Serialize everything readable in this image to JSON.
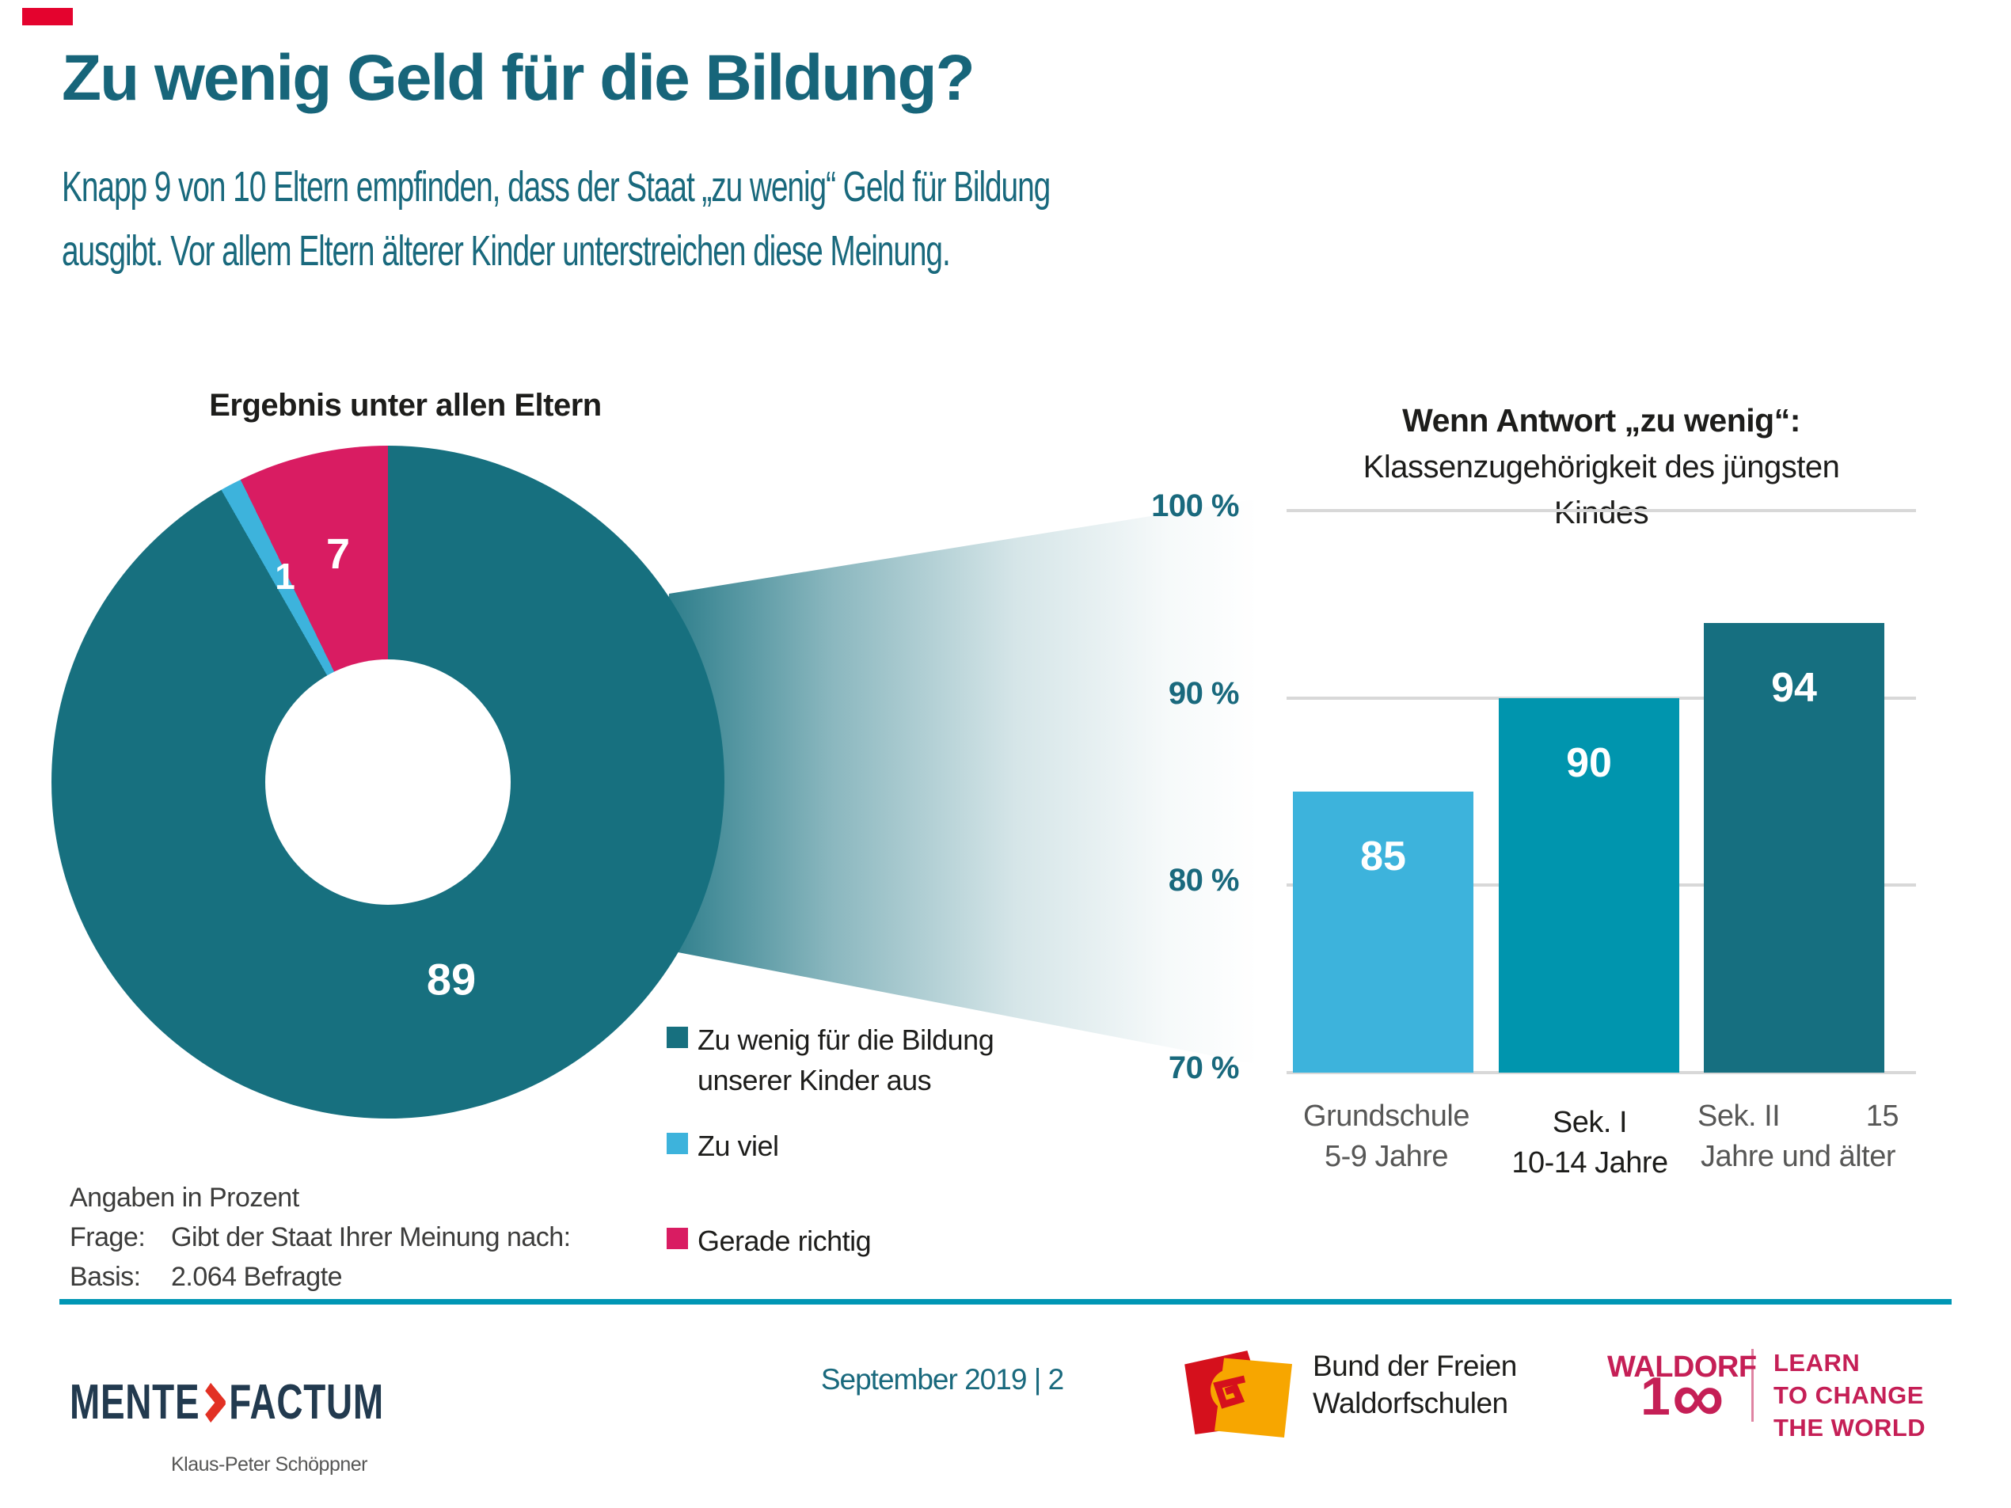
{
  "colors": {
    "title_teal": "#17657a",
    "subtitle_teal": "#19697d",
    "donut_teal": "#17707f",
    "light_blue": "#3db3dc",
    "pink": "#d91c62",
    "bar_mid_teal": "#0095ae",
    "bar_dark_teal": "#166f80",
    "gridline_gray": "#d8d8d8",
    "separator_teal": "#0096b4",
    "mente_navy": "#223a4f",
    "mente_red": "#e23124",
    "waldorf_crimson": "#c51f56",
    "bund_red": "#d5101c",
    "bund_orange": "#f7a600",
    "corner_marker_red": "#e4032e"
  },
  "header": {
    "title": "Zu wenig Geld für die Bildung?",
    "subtitle_line1": "Knapp 9 von 10 Eltern empfinden, dass der Staat „zu wenig“ Geld für Bildung",
    "subtitle_line2": "ausgibt. Vor allem Eltern älterer Kinder unterstreichen diese Meinung."
  },
  "chart_data": [
    {
      "type": "pie",
      "title": "Ergebnis unter allen Eltern",
      "labels": [
        "Zu wenig für die Bildung unserer Kinder aus",
        "Zu viel",
        "Gerade richtig"
      ],
      "values": [
        89,
        1,
        7
      ],
      "colors": [
        "#17707f",
        "#3db3dc",
        "#d91c62"
      ],
      "unit": "percent",
      "donut": true,
      "start_angle_deg": 0,
      "note": "Angaben in Prozent"
    },
    {
      "type": "bar",
      "title": "Wenn Antwort „zu wenig“: Klassenzugehörigkeit des jüngsten Kindes",
      "categories": [
        "Grundschule 5-9 Jahre",
        "Sek. I 10-14 Jahre",
        "Sek. II 15 Jahre und älter"
      ],
      "values": [
        85,
        90,
        94
      ],
      "colors": [
        "#3db3dc",
        "#0095ae",
        "#166f80"
      ],
      "ylim": [
        70,
        100
      ],
      "yticks": [
        "100 %",
        "90 %",
        "80 %",
        "70 %"
      ],
      "grid": true,
      "unit": "percent"
    }
  ],
  "legend": {
    "items": [
      {
        "line1": "Zu wenig für die Bildung",
        "line2": "unserer Kinder aus",
        "color": "#17707f"
      },
      {
        "line1": "Zu viel",
        "line2": "",
        "color": "#3db3dc"
      },
      {
        "line1": "Gerade richtig",
        "line2": "",
        "color": "#d91c62"
      }
    ]
  },
  "bar_chart": {
    "title_bold": "Wenn Antwort „zu wenig“:",
    "title_line2": "Klassenzugehörigkeit des jüngsten",
    "title_line3": "Kindes",
    "xlabels": [
      {
        "line1": "Grundschule",
        "line2": "5-9 Jahre"
      },
      {
        "line1": "Sek. I",
        "line2": "10-14 Jahre"
      },
      {
        "line1a": "Sek. II",
        "line1b": "15",
        "line2": "Jahre und älter"
      }
    ]
  },
  "footnotes": {
    "line1": "Angaben in Prozent",
    "frage_label": "Frage:",
    "frage_text": "Gibt der Staat Ihrer Meinung nach:",
    "basis_label": "Basis:",
    "basis_text": "2.064 Befragte"
  },
  "footer": {
    "mente_part1": "MENTE",
    "mente_part2": "FACTUM",
    "mente_sub": "Klaus-Peter Schöppner",
    "date_page": "September 2019 | 2",
    "bund_line1": "Bund der Freien",
    "bund_line2": "Waldorfschulen",
    "waldorf_name": "WALDORF",
    "waldorf_one": "1",
    "waldorf_infinity": "∞",
    "learn_line1": "LEARN",
    "learn_line2": "TO CHANGE",
    "learn_line3": "THE WORLD"
  }
}
